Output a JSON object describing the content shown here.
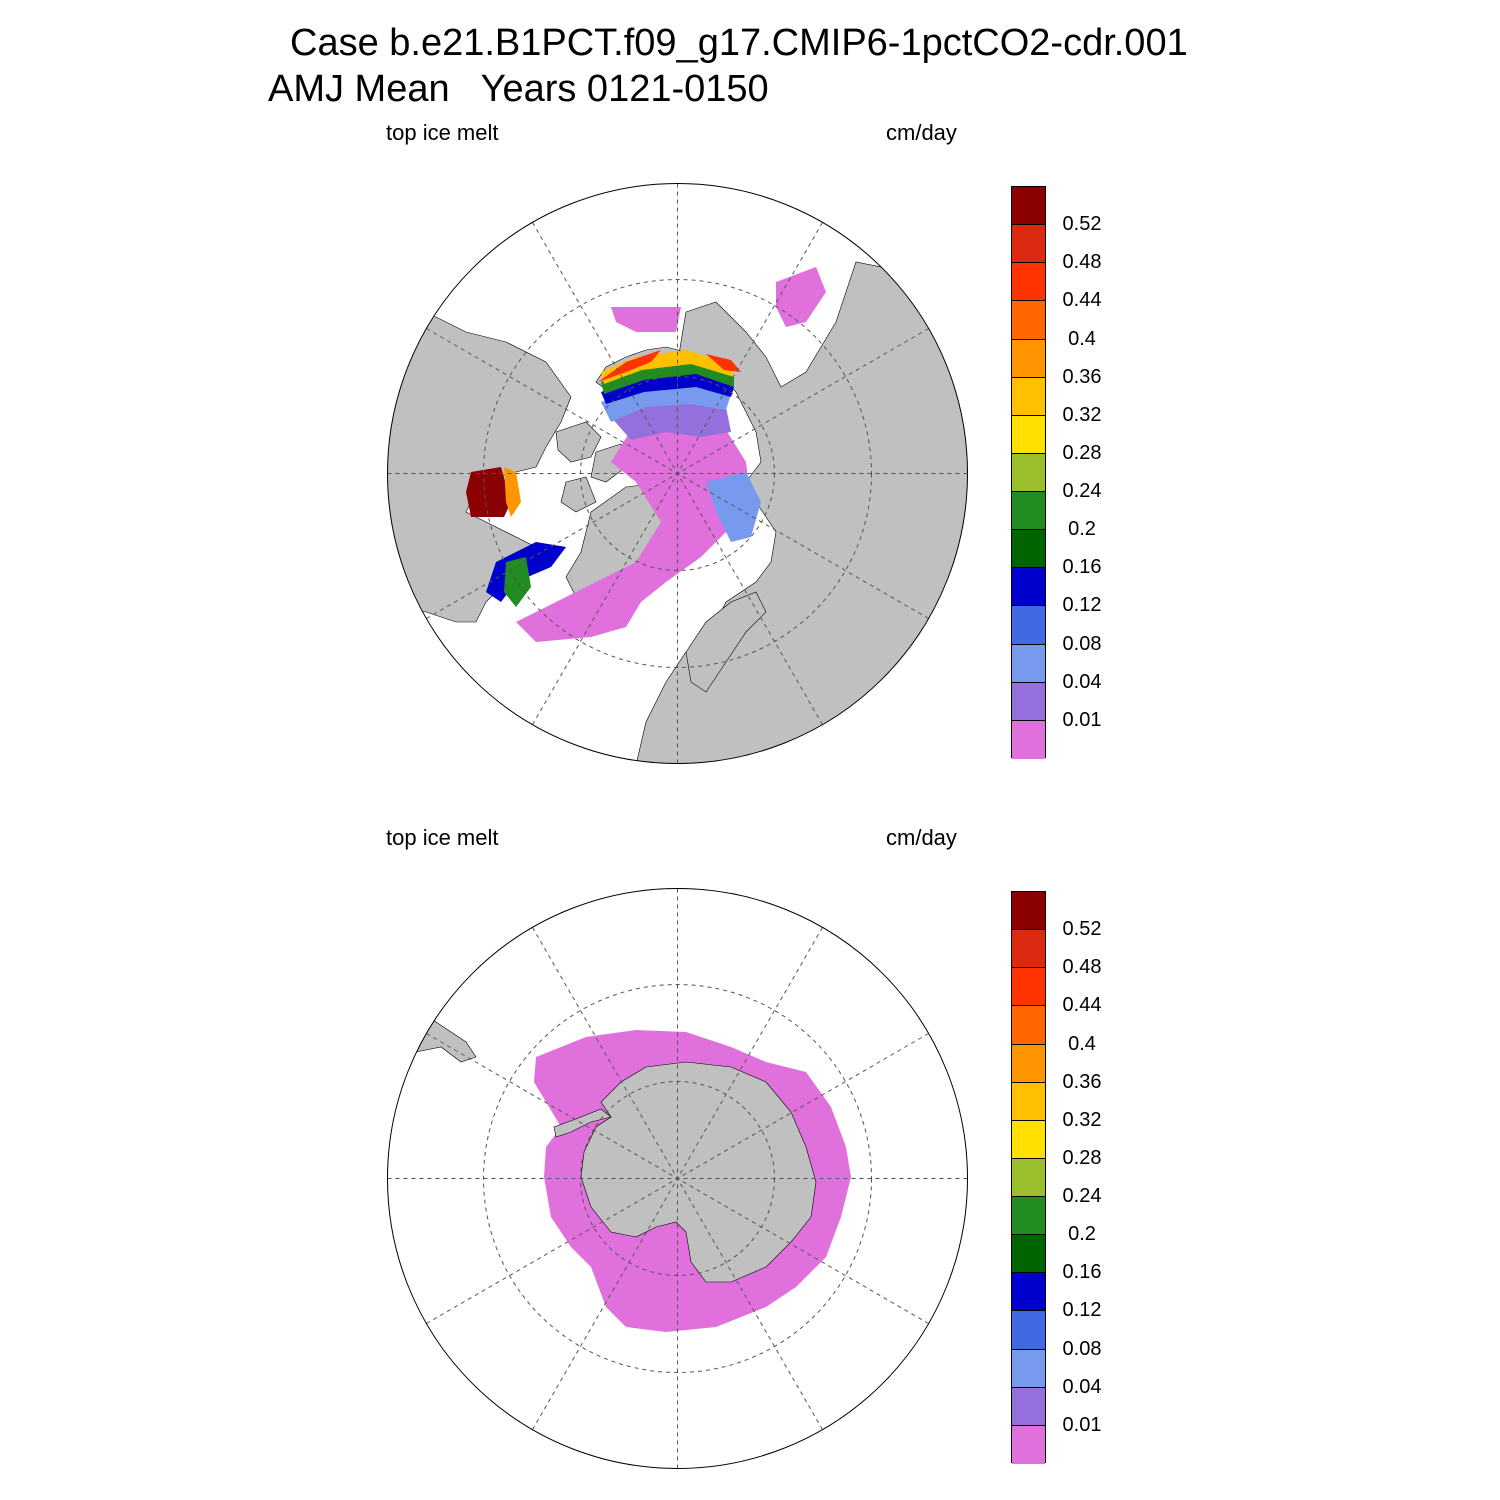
{
  "title_line1": "Case b.e21.B1PCT.f09_g17.CMIP6-1pctCO2-cdr.001",
  "title_line2": "AMJ Mean   Years 0121-0150",
  "panels": [
    {
      "hemisphere": "north",
      "variable_label": "top ice melt",
      "units_label": "cm/day"
    },
    {
      "hemisphere": "south",
      "variable_label": "top ice melt",
      "units_label": "cm/day"
    }
  ],
  "colorbar": {
    "levels": [
      "0.52",
      "0.48",
      "0.44",
      "0.4",
      "0.36",
      "0.32",
      "0.28",
      "0.24",
      "0.2",
      "0.16",
      "0.12",
      "0.08",
      "0.04",
      "0.01"
    ],
    "colors_top_to_bottom": [
      "#8b0000",
      "#dc2a10",
      "#ff3300",
      "#ff6600",
      "#ff9500",
      "#ffc000",
      "#ffe000",
      "#9cbf2e",
      "#228b22",
      "#006400",
      "#0000cd",
      "#4169e1",
      "#7799ee",
      "#9370db",
      "#e070dc"
    ]
  },
  "colors": {
    "land": "#c0c0c0",
    "ocean": "#ffffff",
    "grid": "#555555"
  }
}
